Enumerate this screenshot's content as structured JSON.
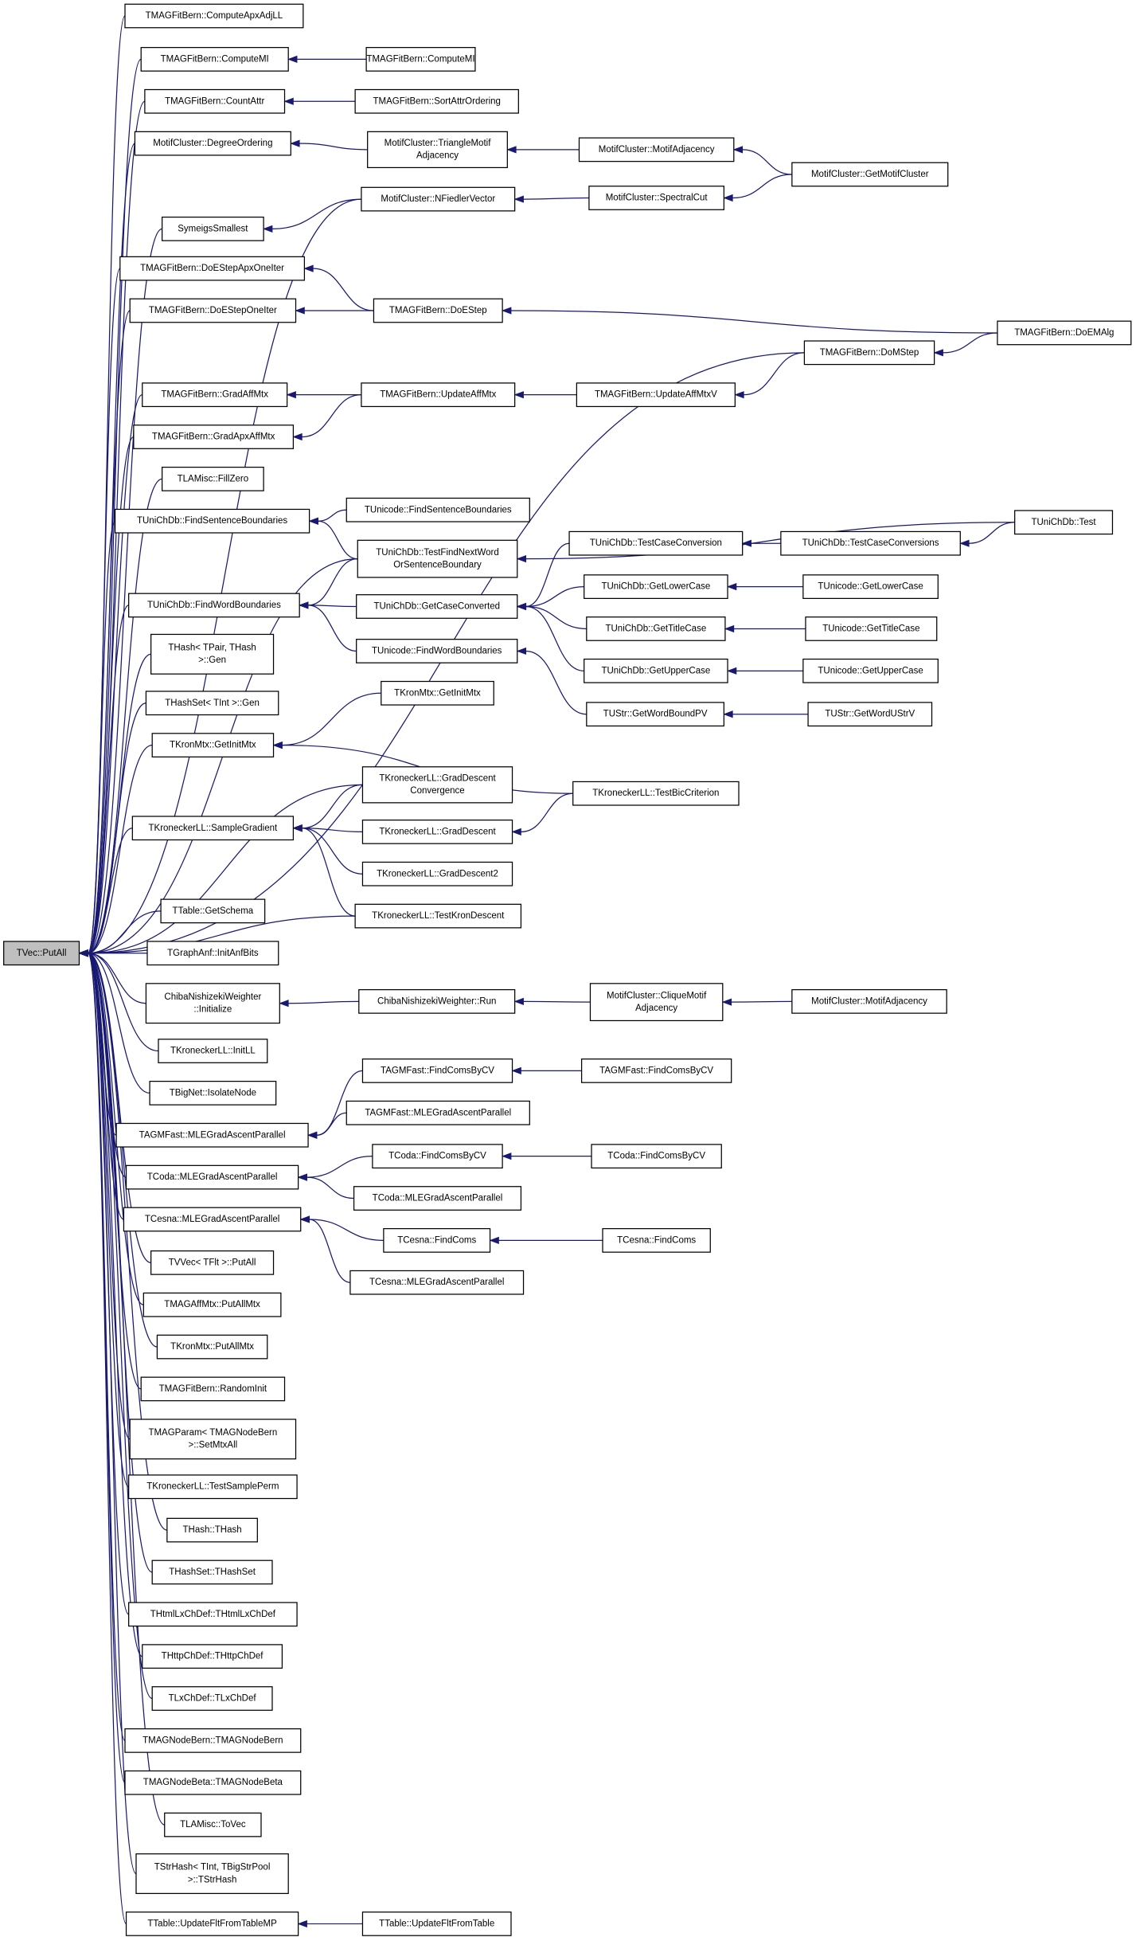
{
  "nodes": [
    {
      "lines": [
        "TVec::PutAll"
      ]
    },
    {
      "lines": [
        "TMAGFitBern::ComputeApxAdjLL"
      ]
    },
    {
      "lines": [
        "TMAGFitBern::ComputeMI"
      ]
    },
    {
      "lines": [
        "TMAGFitBern::CountAttr"
      ]
    },
    {
      "lines": [
        "MotifCluster::DegreeOrdering"
      ]
    },
    {
      "lines": [
        "SymeigsSmallest"
      ]
    },
    {
      "lines": [
        "TMAGFitBern::DoEStepApxOneIter"
      ]
    },
    {
      "lines": [
        "TMAGFitBern::DoEStepOneIter"
      ]
    },
    {
      "lines": [
        "TMAGFitBern::GradAffMtx"
      ]
    },
    {
      "lines": [
        "TMAGFitBern::GradApxAffMtx"
      ]
    },
    {
      "lines": [
        "TLAMisc::FillZero"
      ]
    },
    {
      "lines": [
        "TUniChDb::FindSentenceBoundaries"
      ]
    },
    {
      "lines": [
        "TUniChDb::FindWordBoundaries"
      ]
    },
    {
      "lines": [
        "THash< TPair, THash",
        ">::Gen"
      ]
    },
    {
      "lines": [
        "THashSet< TInt >::Gen"
      ]
    },
    {
      "lines": [
        "TKronMtx::GetInitMtx"
      ]
    },
    {
      "lines": [
        "TKroneckerLL::SampleGradient"
      ]
    },
    {
      "lines": [
        "TTable::GetSchema"
      ]
    },
    {
      "lines": [
        "TGraphAnf::InitAnfBits"
      ]
    },
    {
      "lines": [
        "ChibaNishizekiWeighter",
        "::Initialize"
      ]
    },
    {
      "lines": [
        "TKroneckerLL::InitLL"
      ]
    },
    {
      "lines": [
        "TBigNet::IsolateNode"
      ]
    },
    {
      "lines": [
        "TAGMFast::MLEGradAscentParallel"
      ]
    },
    {
      "lines": [
        "TCoda::MLEGradAscentParallel"
      ]
    },
    {
      "lines": [
        "TCesna::MLEGradAscentParallel"
      ]
    },
    {
      "lines": [
        "TVVec< TFlt >::PutAll"
      ]
    },
    {
      "lines": [
        "TMAGAffMtx::PutAllMtx"
      ]
    },
    {
      "lines": [
        "TKronMtx::PutAllMtx"
      ]
    },
    {
      "lines": [
        "TMAGFitBern::RandomInit"
      ]
    },
    {
      "lines": [
        "TMAGParam< TMAGNodeBern",
        ">::SetMtxAll"
      ]
    },
    {
      "lines": [
        "TKroneckerLL::TestSamplePerm"
      ]
    },
    {
      "lines": [
        "THash::THash"
      ]
    },
    {
      "lines": [
        "THashSet::THashSet"
      ]
    },
    {
      "lines": [
        "THtmlLxChDef::THtmlLxChDef"
      ]
    },
    {
      "lines": [
        "THttpChDef::THttpChDef"
      ]
    },
    {
      "lines": [
        "TLxChDef::TLxChDef"
      ]
    },
    {
      "lines": [
        "TMAGNodeBern::TMAGNodeBern"
      ]
    },
    {
      "lines": [
        "TMAGNodeBeta::TMAGNodeBeta"
      ]
    },
    {
      "lines": [
        "TLAMisc::ToVec"
      ]
    },
    {
      "lines": [
        "TStrHash< TInt, TBigStrPool",
        ">::TStrHash"
      ]
    },
    {
      "lines": [
        "TTable::UpdateFltFromTableMP"
      ]
    },
    {
      "lines": [
        "TMAGFitBern::ComputeMI"
      ]
    },
    {
      "lines": [
        "TMAGFitBern::SortAttrOrdering"
      ]
    },
    {
      "lines": [
        "MotifCluster::TriangleMotif",
        "Adjacency"
      ]
    },
    {
      "lines": [
        "MotifCluster::NFiedlerVector"
      ]
    },
    {
      "lines": [
        "TMAGFitBern::DoEStep"
      ]
    },
    {
      "lines": [
        "TMAGFitBern::UpdateAffMtx"
      ]
    },
    {
      "lines": [
        "TUnicode::FindSentenceBoundaries"
      ]
    },
    {
      "lines": [
        "TUniChDb::TestFindNextWord",
        "OrSentenceBoundary"
      ]
    },
    {
      "lines": [
        "TUniChDb::GetCaseConverted"
      ]
    },
    {
      "lines": [
        "TUnicode::FindWordBoundaries"
      ]
    },
    {
      "lines": [
        "TKronMtx::GetInitMtx"
      ]
    },
    {
      "lines": [
        "TKroneckerLL::GradDescent",
        "Convergence"
      ]
    },
    {
      "lines": [
        "TKroneckerLL::GradDescent"
      ]
    },
    {
      "lines": [
        "TKroneckerLL::GradDescent2"
      ]
    },
    {
      "lines": [
        "TKroneckerLL::TestKronDescent"
      ]
    },
    {
      "lines": [
        "ChibaNishizekiWeighter::Run"
      ]
    },
    {
      "lines": [
        "TAGMFast::FindComsByCV"
      ]
    },
    {
      "lines": [
        "TAGMFast::MLEGradAscentParallel"
      ]
    },
    {
      "lines": [
        "TCoda::FindComsByCV"
      ]
    },
    {
      "lines": [
        "TCoda::MLEGradAscentParallel"
      ]
    },
    {
      "lines": [
        "TCesna::FindComs"
      ]
    },
    {
      "lines": [
        "TCesna::MLEGradAscentParallel"
      ]
    },
    {
      "lines": [
        "TTable::UpdateFltFromTable"
      ]
    },
    {
      "lines": [
        "MotifCluster::MotifAdjacency"
      ]
    },
    {
      "lines": [
        "MotifCluster::SpectralCut"
      ]
    },
    {
      "lines": [
        "TMAGFitBern::DoMStep"
      ]
    },
    {
      "lines": [
        "TMAGFitBern::UpdateAffMtxV"
      ]
    },
    {
      "lines": [
        "TUniChDb::TestCaseConversion"
      ]
    },
    {
      "lines": [
        "TUniChDb::GetLowerCase"
      ]
    },
    {
      "lines": [
        "TUniChDb::GetTitleCase"
      ]
    },
    {
      "lines": [
        "TUniChDb::GetUpperCase"
      ]
    },
    {
      "lines": [
        "TUStr::GetWordBoundPV"
      ]
    },
    {
      "lines": [
        "TKroneckerLL::TestBicCriterion"
      ]
    },
    {
      "lines": [
        "MotifCluster::CliqueMotif",
        "Adjacency"
      ]
    },
    {
      "lines": [
        "TAGMFast::FindComsByCV"
      ]
    },
    {
      "lines": [
        "TCoda::FindComsByCV"
      ]
    },
    {
      "lines": [
        "TCesna::FindComs"
      ]
    },
    {
      "lines": [
        "MotifCluster::GetMotifCluster"
      ]
    },
    {
      "lines": [
        "TUniChDb::TestCaseConversions"
      ]
    },
    {
      "lines": [
        "TUnicode::GetLowerCase"
      ]
    },
    {
      "lines": [
        "TUnicode::GetTitleCase"
      ]
    },
    {
      "lines": [
        "TUnicode::GetUpperCase"
      ]
    },
    {
      "lines": [
        "TUStr::GetWordUStrV"
      ]
    },
    {
      "lines": [
        "MotifCluster::MotifAdjacency"
      ]
    },
    {
      "lines": [
        "TMAGFitBern::DoEMAlg"
      ]
    },
    {
      "lines": [
        "TUniChDb::Test"
      ]
    }
  ]
}
